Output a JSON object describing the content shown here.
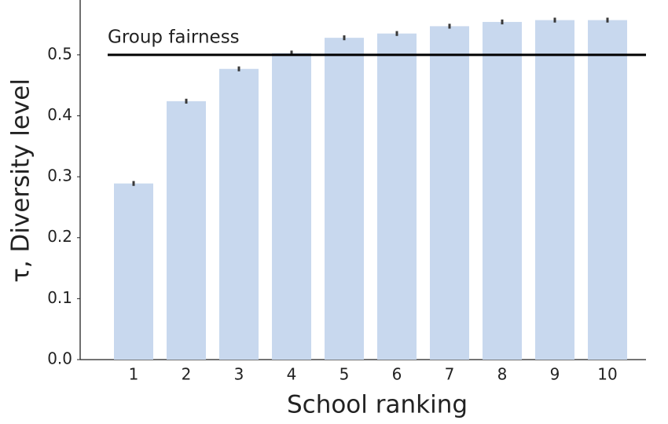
{
  "chart_data": {
    "type": "bar",
    "xlabel": "School ranking",
    "ylabel": "τ, Diversity level",
    "categories": [
      "1",
      "2",
      "3",
      "4",
      "5",
      "6",
      "7",
      "8",
      "9",
      "10"
    ],
    "values": [
      0.289,
      0.424,
      0.477,
      0.503,
      0.528,
      0.535,
      0.547,
      0.554,
      0.557,
      0.557
    ],
    "errors": [
      0.004,
      0.004,
      0.004,
      0.004,
      0.004,
      0.004,
      0.004,
      0.004,
      0.004,
      0.004
    ],
    "color": "#c8d8ee",
    "error_color": "#3a3a3a",
    "ylim": [
      0,
      0.59
    ],
    "yticks": [
      {
        "value": 0,
        "label": "0.0"
      },
      0.1,
      0.2,
      0.3,
      0.4,
      0.5
    ],
    "reference_line": {
      "value": 0.5,
      "label": "Group fairness",
      "color": "#000000"
    },
    "grid": false
  }
}
